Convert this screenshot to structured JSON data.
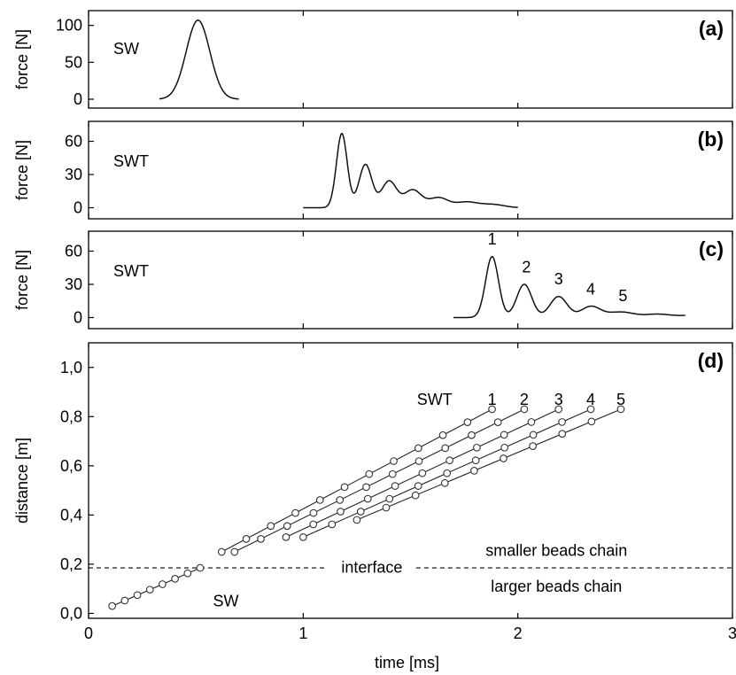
{
  "chart_data": [
    {
      "panel_label": "(a)",
      "type": "line",
      "ylabel": "force [N]",
      "xlim": [
        0,
        3
      ],
      "ylim": [
        -12,
        120
      ],
      "yticks": [
        0,
        50,
        100
      ],
      "annotations": [
        {
          "text": "SW"
        }
      ],
      "series": [
        {
          "pulses": [
            {
              "center": 0.51,
              "amplitude": 107,
              "width": 0.055
            }
          ],
          "x_range": [
            0.33,
            0.7
          ]
        }
      ]
    },
    {
      "panel_label": "(b)",
      "type": "line",
      "ylabel": "force [N]",
      "xlim": [
        0,
        3
      ],
      "ylim": [
        -10,
        78
      ],
      "yticks": [
        0,
        30,
        60
      ],
      "annotations": [
        {
          "text": "SWT"
        }
      ],
      "series": [
        {
          "pulses": [
            {
              "center": 1.18,
              "amplitude": 67,
              "width": 0.025
            },
            {
              "center": 1.29,
              "amplitude": 39,
              "width": 0.03
            },
            {
              "center": 1.4,
              "amplitude": 24,
              "width": 0.035
            },
            {
              "center": 1.51,
              "amplitude": 16,
              "width": 0.04
            },
            {
              "center": 1.63,
              "amplitude": 9,
              "width": 0.045
            },
            {
              "center": 1.76,
              "amplitude": 5,
              "width": 0.05
            },
            {
              "center": 1.88,
              "amplitude": 3,
              "width": 0.055
            }
          ],
          "x_range": [
            1.0,
            2.0
          ]
        }
      ]
    },
    {
      "panel_label": "(c)",
      "type": "line",
      "ylabel": "force [N]",
      "xlim": [
        0,
        3
      ],
      "ylim": [
        -10,
        78
      ],
      "yticks": [
        0,
        30,
        60
      ],
      "annotations": [
        {
          "text": "SWT"
        }
      ],
      "series": [
        {
          "pulses": [
            {
              "center": 1.88,
              "amplitude": 55,
              "width": 0.03
            },
            {
              "center": 2.03,
              "amplitude": 30,
              "width": 0.035
            },
            {
              "center": 2.19,
              "amplitude": 19,
              "width": 0.04
            },
            {
              "center": 2.34,
              "amplitude": 10,
              "width": 0.045
            },
            {
              "center": 2.48,
              "amplitude": 5,
              "width": 0.06
            },
            {
              "center": 2.65,
              "amplitude": 3,
              "width": 0.06
            },
            {
              "center": 2.82,
              "amplitude": 2,
              "width": 0.07
            }
          ],
          "x_range": [
            1.7,
            2.78
          ]
        }
      ],
      "peak_labels": [
        {
          "text": "1",
          "x": 1.88,
          "y": 66
        },
        {
          "text": "2",
          "x": 2.04,
          "y": 41
        },
        {
          "text": "3",
          "x": 2.19,
          "y": 30
        },
        {
          "text": "4",
          "x": 2.34,
          "y": 21
        },
        {
          "text": "5",
          "x": 2.49,
          "y": 15
        }
      ]
    },
    {
      "panel_label": "(d)",
      "type": "scatter",
      "ylabel": "distance [m]",
      "xlabel": "time [ms]",
      "xlim": [
        0,
        3
      ],
      "ylim": [
        -0.02,
        1.1
      ],
      "xticks": [
        0,
        1,
        2,
        3
      ],
      "yticks": [
        0.0,
        0.2,
        0.4,
        0.6,
        0.8,
        1.0
      ],
      "ytick_labels": [
        "0,0",
        "0,2",
        "0,4",
        "0,6",
        "0,8",
        "1,0"
      ],
      "interface_y": 0.185,
      "annotations": [
        {
          "text": "SWT",
          "x": 1.53,
          "y": 0.87
        },
        {
          "text": "interface",
          "x": 1.32,
          "y": 0.187
        },
        {
          "text": "smaller beads chain",
          "x": 2.18,
          "y": 0.255
        },
        {
          "text": "larger beads chain",
          "x": 2.18,
          "y": 0.11
        },
        {
          "text": "SW",
          "x": 0.58,
          "y": 0.05
        }
      ],
      "series": [
        {
          "label": "SW",
          "start": [
            0.11,
            0.03
          ],
          "end": [
            0.52,
            0.185
          ],
          "count": 8
        },
        {
          "label": "1",
          "start": [
            0.62,
            0.25
          ],
          "end": [
            1.88,
            0.83
          ],
          "count": 12
        },
        {
          "label": "2",
          "start": [
            0.68,
            0.25
          ],
          "end": [
            2.03,
            0.83
          ],
          "count": 12
        },
        {
          "label": "3",
          "start": [
            0.92,
            0.31
          ],
          "end": [
            2.19,
            0.83
          ],
          "count": 11
        },
        {
          "label": "4",
          "start": [
            1.0,
            0.31
          ],
          "end": [
            2.34,
            0.83
          ],
          "count": 11
        },
        {
          "label": "5",
          "start": [
            1.25,
            0.38
          ],
          "end": [
            2.48,
            0.83
          ],
          "count": 10
        }
      ]
    }
  ]
}
